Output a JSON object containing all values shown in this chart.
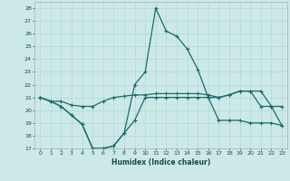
{
  "title": "",
  "xlabel": "Humidex (Indice chaleur)",
  "xlim": [
    -0.5,
    23.5
  ],
  "ylim": [
    17,
    28.5
  ],
  "yticks": [
    17,
    18,
    19,
    20,
    21,
    22,
    23,
    24,
    25,
    26,
    27,
    28
  ],
  "xticks": [
    0,
    1,
    2,
    3,
    4,
    5,
    6,
    7,
    8,
    9,
    10,
    11,
    12,
    13,
    14,
    15,
    16,
    17,
    18,
    19,
    20,
    21,
    22,
    23
  ],
  "bg_color": "#cce9e8",
  "grid_color": "#b0d8d6",
  "line_color": "#1a6b6b",
  "line1_x": [
    0,
    1,
    2,
    3,
    4,
    5,
    6,
    7,
    8,
    9,
    10,
    11,
    12,
    13,
    14,
    15,
    16,
    17,
    18,
    19,
    20,
    21,
    22,
    23
  ],
  "line1_y": [
    21.0,
    20.7,
    20.3,
    19.6,
    18.9,
    17.0,
    17.0,
    17.2,
    18.2,
    19.2,
    21.0,
    21.0,
    21.0,
    21.0,
    21.0,
    21.0,
    21.0,
    19.2,
    19.2,
    19.2,
    19.0,
    19.0,
    19.0,
    18.8
  ],
  "line2_x": [
    0,
    1,
    2,
    3,
    4,
    5,
    6,
    7,
    8,
    9,
    10,
    11,
    12,
    13,
    14,
    15,
    16,
    17,
    18,
    19,
    20,
    21,
    22,
    23
  ],
  "line2_y": [
    21.0,
    20.7,
    20.3,
    19.6,
    18.9,
    17.0,
    17.0,
    17.2,
    18.2,
    22.0,
    23.0,
    28.0,
    26.2,
    25.8,
    24.8,
    23.2,
    21.0,
    21.0,
    21.2,
    21.5,
    21.5,
    20.3,
    20.3,
    18.8
  ],
  "line3_x": [
    0,
    1,
    2,
    3,
    4,
    5,
    6,
    7,
    8,
    9,
    10,
    11,
    12,
    13,
    14,
    15,
    16,
    17,
    18,
    19,
    20,
    21,
    22,
    23
  ],
  "line3_y": [
    21.0,
    20.7,
    20.7,
    20.4,
    20.3,
    20.3,
    20.7,
    21.0,
    21.1,
    21.2,
    21.2,
    21.3,
    21.3,
    21.3,
    21.3,
    21.3,
    21.2,
    21.0,
    21.2,
    21.5,
    21.5,
    21.5,
    20.3,
    20.3
  ]
}
